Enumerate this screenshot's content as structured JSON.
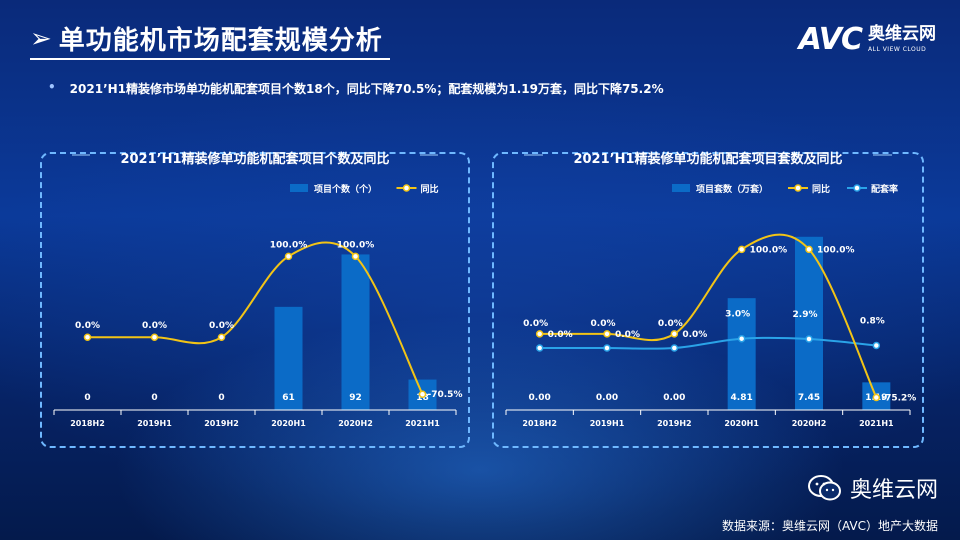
{
  "title": "单功能机市场配套规模分析",
  "title_mark": "➢",
  "logo": {
    "avc": "AVC",
    "cn": "奥维云网",
    "en": "ALL VIEW CLOUD"
  },
  "summary": {
    "bullet": "•",
    "text": "2021’H1精装修市场单功能机配套项目个数18个，同比下降70.5%；配套规模为1.19万套，同比下降75.2%"
  },
  "colors": {
    "bar": "#0b6bc7",
    "yoy": "#f2c416",
    "rate": "#2aa3e8",
    "panel_border": "#6fb8ff"
  },
  "chart_data": [
    {
      "type": "bar",
      "title": "2021’H1精装修单功能机配套项目个数及同比",
      "categories": [
        "2018H2",
        "2019H1",
        "2019H2",
        "2020H1",
        "2020H2",
        "2021H1"
      ],
      "series": [
        {
          "name": "项目个数（个）",
          "kind": "bar",
          "values": [
            0,
            0,
            0,
            61,
            92,
            18
          ],
          "labels": [
            "0",
            "0",
            "0",
            "61",
            "92",
            "18"
          ]
        },
        {
          "name": "同比",
          "kind": "line",
          "values": [
            0,
            0,
            0,
            100,
            100,
            -70.5
          ],
          "labels": [
            "0.0%",
            "0.0%",
            "0.0%",
            "100.0%",
            "100.0%",
            "-70.5%"
          ]
        }
      ],
      "bar_ylim": [
        0,
        110
      ],
      "line_ylim": [
        -90,
        140
      ]
    },
    {
      "type": "bar",
      "title": "2021’H1精装修单功能机配套项目套数及同比",
      "categories": [
        "2018H2",
        "2019H1",
        "2019H2",
        "2020H1",
        "2020H2",
        "2021H1"
      ],
      "series": [
        {
          "name": "项目套数（万套）",
          "kind": "bar",
          "values": [
            0,
            0,
            0,
            4.81,
            7.45,
            1.19
          ],
          "labels": [
            "0.00",
            "0.00",
            "0.00",
            "4.81",
            "7.45",
            "1.19"
          ]
        },
        {
          "name": "同比",
          "kind": "line",
          "values": [
            0,
            0,
            0,
            100,
            100,
            -75.2
          ],
          "labels": [
            "0.0%",
            "0.0%",
            "0.0%",
            "100.0%",
            "100.0%",
            "-75.2%"
          ]
        },
        {
          "name": "配套率",
          "kind": "line",
          "values": [
            0,
            0,
            0,
            3.0,
            2.9,
            0.8
          ],
          "labels": [
            "0.0%",
            "0.0%",
            "0.0%",
            "3.0%",
            "2.9%",
            "0.8%"
          ]
        }
      ],
      "bar_ylim": [
        0,
        8
      ],
      "line_ylim": [
        -90,
        130
      ],
      "rate_ylim": [
        -20,
        40
      ]
    }
  ],
  "watermark": "奥维云网",
  "source": "数据来源：奥维云网（AVC）地产大数据"
}
